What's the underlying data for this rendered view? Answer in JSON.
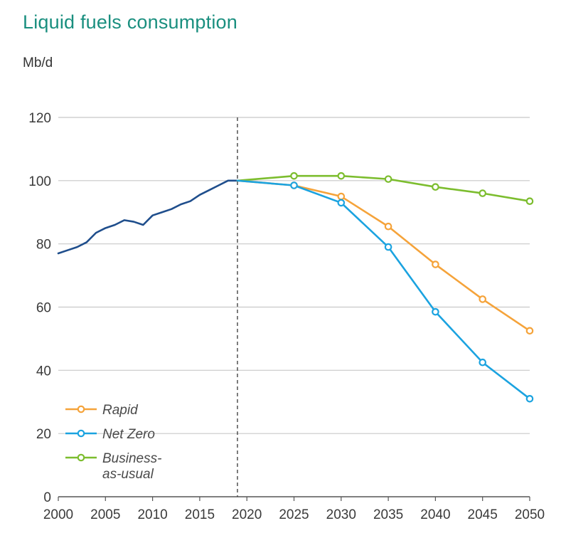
{
  "chart_data": {
    "type": "line",
    "title": "Liquid fuels consumption",
    "ylabel": "Mb/d",
    "xlabel": "",
    "xlim": [
      2000,
      2050
    ],
    "ylim": [
      0,
      120
    ],
    "x_ticks": [
      2000,
      2005,
      2010,
      2015,
      2020,
      2025,
      2030,
      2035,
      2040,
      2045,
      2050
    ],
    "y_ticks": [
      0,
      20,
      40,
      60,
      80,
      100,
      120
    ],
    "grid": "horizontal",
    "divider_x": 2019,
    "legend_position": "bottom-left",
    "colors": {
      "history": "#1f4e8c",
      "Rapid": "#f5a33a",
      "Net Zero": "#1ba3e0",
      "Business-as-usual": "#7cbd2e",
      "grid": "#c8c8c8",
      "axis": "#555555"
    },
    "history": {
      "x": [
        2000,
        2001,
        2002,
        2003,
        2004,
        2005,
        2006,
        2007,
        2008,
        2009,
        2010,
        2011,
        2012,
        2013,
        2014,
        2015,
        2016,
        2017,
        2018,
        2019
      ],
      "values": [
        77,
        78,
        79,
        80.5,
        83.5,
        85,
        86,
        87.5,
        87,
        86,
        89,
        90,
        91,
        92.5,
        93.5,
        95.5,
        97,
        98.5,
        100,
        100
      ]
    },
    "series": [
      {
        "name": "Rapid",
        "x": [
          2019,
          2025,
          2030,
          2035,
          2040,
          2045,
          2050
        ],
        "values": [
          100,
          98.5,
          95,
          85.5,
          73.5,
          62.5,
          52.5
        ]
      },
      {
        "name": "Net Zero",
        "x": [
          2019,
          2025,
          2030,
          2035,
          2040,
          2045,
          2050
        ],
        "values": [
          100,
          98.5,
          93,
          79,
          58.5,
          42.5,
          31
        ]
      },
      {
        "name": "Business-as-usual",
        "x": [
          2019,
          2025,
          2030,
          2035,
          2040,
          2045,
          2050
        ],
        "values": [
          100,
          101.5,
          101.5,
          100.5,
          98,
          96,
          93.5
        ]
      }
    ],
    "legend": [
      {
        "series": "Rapid",
        "lines": [
          "Rapid"
        ]
      },
      {
        "series": "Net Zero",
        "lines": [
          "Net Zero"
        ]
      },
      {
        "series": "Business-as-usual",
        "lines": [
          "Business-",
          "as-usual"
        ]
      }
    ]
  }
}
